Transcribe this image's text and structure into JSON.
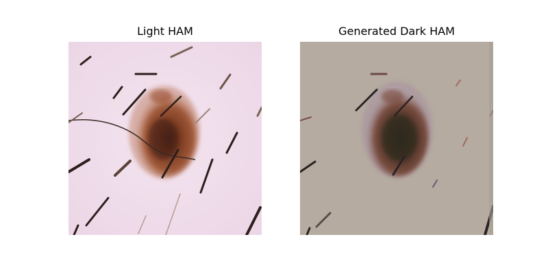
{
  "figure": {
    "panels": [
      {
        "title": "Light HAM",
        "image": "dermoscopy-lesion-light-skin"
      },
      {
        "title": "Generated Dark HAM",
        "image": "dermoscopy-lesion-dark-skin-generated"
      }
    ]
  },
  "colors": {
    "light_skin": "#efdcec",
    "dark_skin": "#b5aba0",
    "lesion_light": "#8a4a2c",
    "lesion_dark": "#4a3226",
    "hair": "#2a1f1c"
  }
}
